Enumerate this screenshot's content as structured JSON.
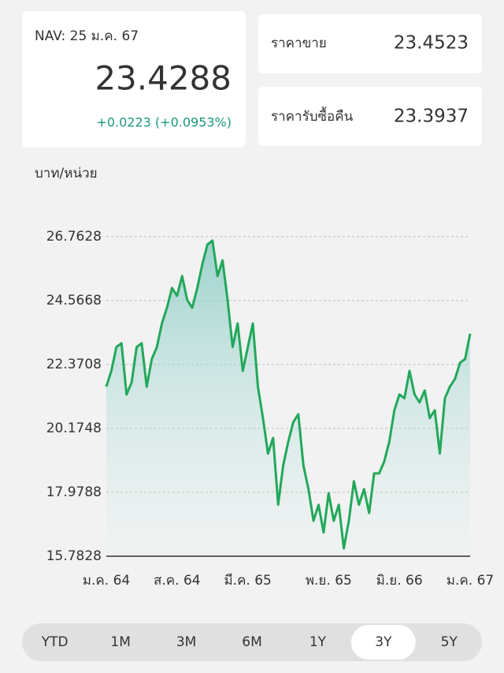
{
  "nav": {
    "label": "NAV: 25 ม.ค. 67",
    "value": "23.4288",
    "change": "+0.0223 (+0.0953%)"
  },
  "prices": [
    {
      "label": "ราคาขาย",
      "value": "23.4523"
    },
    {
      "label": "ราคารับซื้อคืน",
      "value": "23.3937"
    }
  ],
  "chart_data": {
    "type": "line",
    "ylabel": "บาท/หน่วย",
    "x": [
      0,
      0.5,
      1,
      1.5,
      2,
      2.5,
      3,
      3.5,
      4,
      4.5,
      5,
      5.5,
      6,
      6.5,
      7,
      7.5,
      8,
      8.5,
      9,
      9.5,
      10,
      10.5,
      11,
      11.5,
      12,
      12.5,
      13,
      13.5,
      14,
      14.5,
      15,
      15.5,
      16,
      16.5,
      17,
      17.5,
      18,
      18.5,
      19,
      19.5,
      20,
      20.5,
      21,
      21.5,
      22,
      22.5,
      23,
      23.5,
      24,
      24.5,
      25,
      25.5,
      26,
      26.5,
      27,
      27.5,
      28,
      28.5,
      29,
      29.5,
      30,
      30.5,
      31,
      31.5,
      32,
      32.5,
      33,
      33.5,
      34,
      34.5,
      35,
      35.5,
      36
    ],
    "series": [
      {
        "color": "#22a85a",
        "values": [
          21.61,
          22.15,
          22.97,
          23.1,
          21.34,
          21.75,
          22.97,
          23.1,
          21.61,
          22.56,
          22.97,
          23.78,
          24.32,
          25.0,
          24.73,
          25.41,
          24.59,
          24.32,
          25.0,
          25.81,
          26.49,
          26.63,
          25.41,
          25.95,
          24.59,
          22.97,
          23.78,
          22.15,
          22.97,
          23.78,
          21.61,
          20.53,
          19.31,
          19.85,
          17.55,
          18.9,
          19.71,
          20.39,
          20.66,
          18.9,
          18.09,
          17.0,
          17.55,
          16.6,
          17.95,
          17.0,
          17.55,
          16.05,
          17.0,
          18.36,
          17.55,
          18.09,
          17.27,
          18.63,
          18.63,
          19.04,
          19.71,
          20.8,
          21.34,
          21.21,
          22.15,
          21.34,
          21.07,
          21.48,
          20.53,
          20.8,
          19.31,
          21.21,
          21.61,
          21.88,
          22.43,
          22.56,
          23.4288
        ]
      }
    ],
    "xlim": [
      0,
      36
    ],
    "xticks": [
      {
        "value": 0,
        "label": "ม.ค. 64"
      },
      {
        "value": 7,
        "label": "ส.ค. 64"
      },
      {
        "value": 14,
        "label": "มี.ค. 65"
      },
      {
        "value": 22,
        "label": "พ.ย. 65"
      },
      {
        "value": 29,
        "label": "มิ.ย. 66"
      },
      {
        "value": 36,
        "label": "ม.ค. 67"
      }
    ],
    "ylim": [
      15.7828,
      26.7628
    ],
    "yticks": [
      15.7828,
      17.9788,
      20.1748,
      22.3708,
      24.5668,
      26.7628
    ],
    "grid": true
  },
  "ranges": [
    "YTD",
    "1M",
    "3M",
    "6M",
    "1Y",
    "3Y",
    "5Y"
  ],
  "selected": 5
}
